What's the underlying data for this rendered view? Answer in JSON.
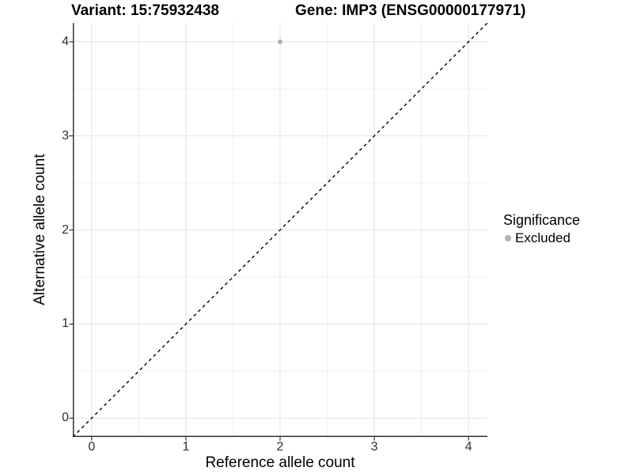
{
  "titles": {
    "left": "Variant: 15:75932438",
    "right": "Gene: IMP3 (ENSG00000177971)"
  },
  "legend": {
    "title": "Significance",
    "entries": [
      {
        "label": "Excluded",
        "color": "#b2b2b2"
      }
    ]
  },
  "chart_data": {
    "type": "scatter",
    "title": "Variant: 15:75932438   |   Gene: IMP3 (ENSG00000177971)",
    "xlabel": "Reference allele count",
    "ylabel": "Alternative allele count",
    "xlim": [
      -0.2,
      4.2
    ],
    "ylim": [
      -0.2,
      4.2
    ],
    "xticks": [
      0,
      1,
      2,
      3,
      4
    ],
    "yticks": [
      0,
      1,
      2,
      3,
      4
    ],
    "xminor": [
      0.5,
      1.5,
      2.5,
      3.5
    ],
    "yminor": [
      0.5,
      1.5,
      2.5,
      3.5
    ],
    "grid": "major+minor",
    "legend_position": "right",
    "series": [
      {
        "name": "Excluded",
        "color": "#b2b2b2",
        "points": [
          {
            "x": 2,
            "y": 4
          }
        ]
      }
    ],
    "reference_line": {
      "type": "abline",
      "slope": 1,
      "intercept": 0,
      "linestyle": "dashed",
      "color": "#000000"
    },
    "colors": {
      "grid_major": "#e3e3e3",
      "grid_minor": "#efefef",
      "axis_line": "#333333",
      "tick_mark": "#333333",
      "tick_text": "#303030"
    }
  }
}
